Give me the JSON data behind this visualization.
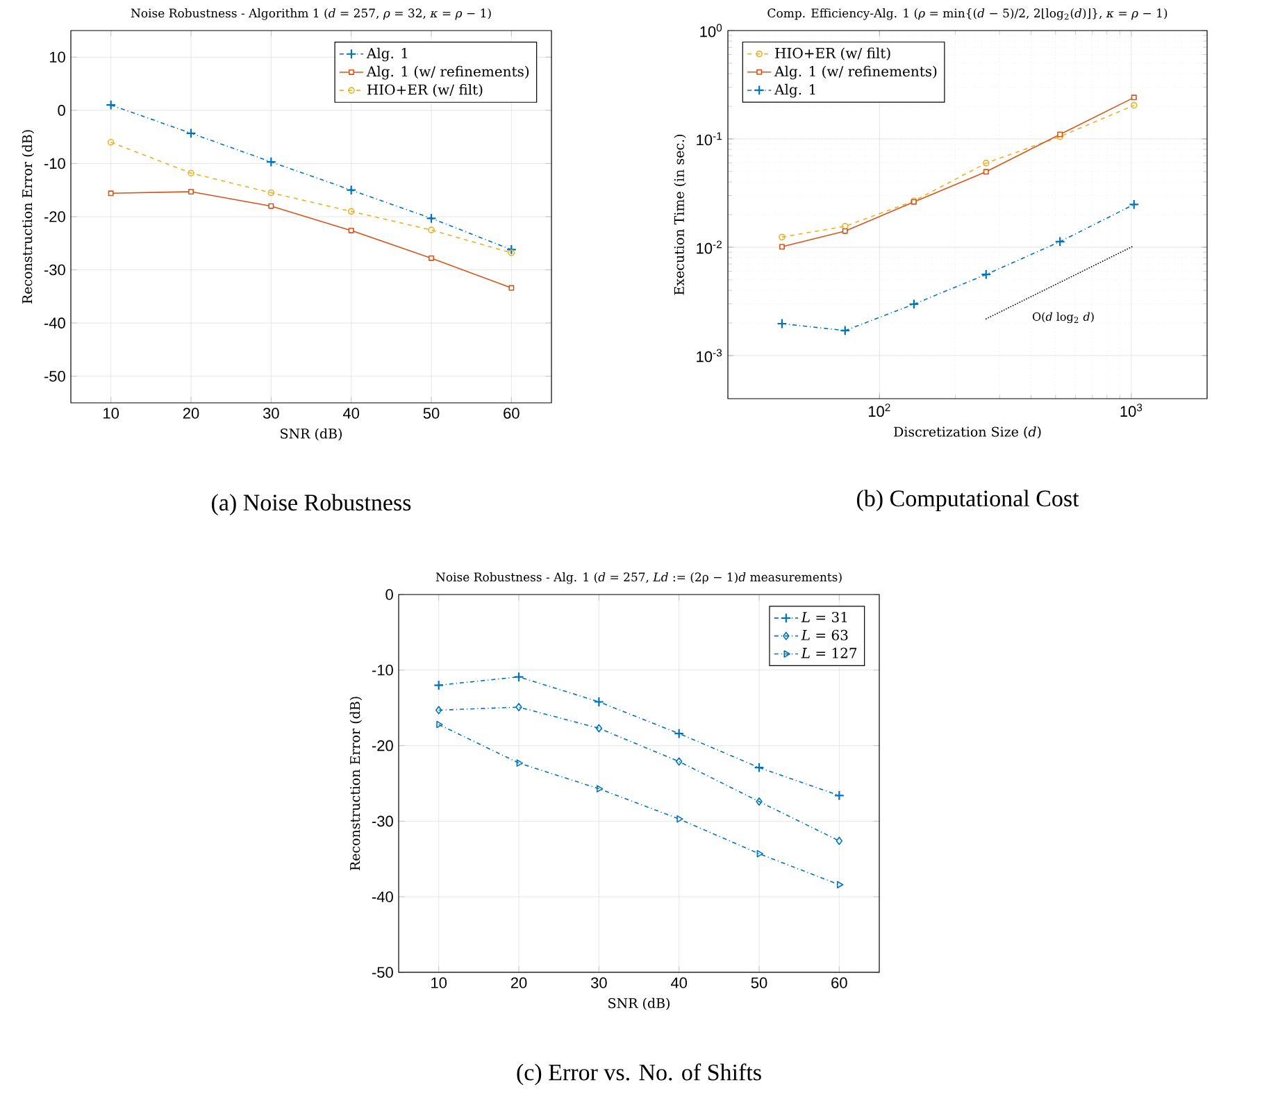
{
  "chart_data": [
    {
      "type": "line",
      "title": "Noise Robustness - Algorithm 1 (*d* = 257, *ρ* = 32, *κ* = *ρ* − 1)",
      "xlabel": "SNR (dB)",
      "ylabel": "Reconstruction Error (dB)",
      "x": [
        10,
        20,
        30,
        40,
        50,
        60
      ],
      "series": [
        {
          "name": "Alg. 1",
          "color": "#0072bd",
          "marker": "cross",
          "line_style": "dashdot",
          "values": [
            1,
            -4.3,
            -9.7,
            -15,
            -20.3,
            -26.2
          ]
        },
        {
          "name": "Alg. 1 (w/ refinements)",
          "color": "#d95319",
          "marker": "square",
          "line_style": "solid",
          "values": [
            -15.6,
            -15.3,
            -18,
            -22.6,
            -27.8,
            -33.4
          ]
        },
        {
          "name": "HIO+ER (w/ filt)",
          "color": "#edb120",
          "marker": "circle",
          "line_style": "dashed",
          "values": [
            -6,
            -11.8,
            -15.5,
            -19,
            -22.5,
            -26.8
          ]
        }
      ],
      "xlim": [
        5,
        65
      ],
      "ylim": [
        -55,
        15
      ],
      "xticks": [
        10,
        20,
        30,
        40,
        50,
        60
      ],
      "yticks": [
        -50,
        -40,
        -30,
        -20,
        -10,
        0,
        10
      ],
      "grid": true,
      "legend": "top right",
      "annotations": [
        "(a) Noise Robustness"
      ]
    },
    {
      "type": "line",
      "title": "Comp. Efficiency-Alg. 1 (*ρ* = min{(*d* − 5)/2, 2⌊log$_{2}$(*d*)⌋}, *κ* = *ρ* − 1)",
      "xlabel": "Discretization Size (*d*)",
      "ylabel": "Execution Time (in sec.)",
      "x": [
        41,
        73,
        137,
        265,
        521,
        1025
      ],
      "series": [
        {
          "name": "HIO+ER (w/ filt)",
          "color": "#edb120",
          "marker": "circle",
          "line_style": "dashed",
          "values": [
            0.0124,
            0.0156,
            0.0267,
            0.0597,
            0.105,
            0.204
          ]
        },
        {
          "name": "Alg. 1 (w/ refinements)",
          "color": "#d95319",
          "marker": "square",
          "line_style": "solid",
          "values": [
            0.0101,
            0.0141,
            0.0262,
            0.0497,
            0.11,
            0.241
          ]
        },
        {
          "name": "Alg. 1",
          "color": "#0072bd",
          "marker": "cross",
          "line_style": "dashdot",
          "values": [
            0.00197,
            0.0017,
            0.00298,
            0.0056,
            0.01125,
            0.0248
          ]
        },
        {
          "color": "#000000",
          "marker": "none",
          "line_style": "dotted",
          "x": [
            264,
            1015
          ],
          "values": [
            0.00217,
            0.0102
          ]
        }
      ],
      "log": "xy",
      "xlim": [
        25,
        2000
      ],
      "ylim": [
        0.0004,
        1
      ],
      "xticks": [
        {
          "value": 100,
          "label": "10$^{2}$"
        },
        {
          "value": 1000,
          "label": "10$^{3}$"
        }
      ],
      "yticks": [
        {
          "value": 0.001,
          "label": "10$^{-3}$"
        },
        {
          "value": 0.01,
          "label": "10$^{-2}$"
        },
        {
          "value": 0.1,
          "label": "10$^{-1}$"
        },
        {
          "value": 1,
          "label": "10$^{0}$"
        }
      ],
      "grid": true,
      "legend": "top left",
      "annotations": [
        "O(*d* log$_{2}$ *d*)",
        "(b) Computational Cost"
      ]
    },
    {
      "type": "line",
      "title": "Noise Robustness - Alg. 1 (*d* = 257, *Ld* := (2ρ − 1)*d* measurements)",
      "xlabel": "SNR (dB)",
      "ylabel": "Reconstruction Error (dB)",
      "x": [
        10,
        20,
        30,
        40,
        50,
        60
      ],
      "series": [
        {
          "name": "*L* = 31",
          "color": "#0072bd",
          "marker": "cross",
          "line_style": "dashdot",
          "values": [
            -12,
            -10.9,
            -14.2,
            -18.4,
            -22.9,
            -26.6
          ]
        },
        {
          "name": "*L* = 63",
          "color": "#0072bd",
          "marker": "diamond",
          "line_style": "dashdot",
          "values": [
            -15.3,
            -14.9,
            -17.7,
            -22.1,
            -27.4,
            -32.6
          ]
        },
        {
          "name": "*L* = 127",
          "color": "#0072bd",
          "marker": "triangle",
          "line_style": "dashdot",
          "values": [
            -17.2,
            -22.3,
            -25.7,
            -29.7,
            -34.3,
            -38.4
          ]
        }
      ],
      "xlim": [
        5,
        65
      ],
      "ylim": [
        -50,
        0
      ],
      "xticks": [
        10,
        20,
        30,
        40,
        50,
        60
      ],
      "yticks": [
        -50,
        -40,
        -30,
        -20,
        -10,
        0
      ],
      "grid": true,
      "legend": "top right",
      "annotations": [
        "(c) Error vs. No. of Shifts"
      ]
    }
  ]
}
